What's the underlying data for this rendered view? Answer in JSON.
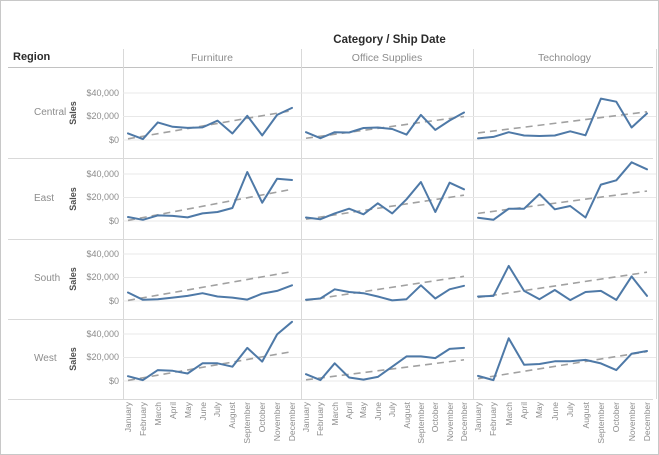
{
  "colors": {
    "line": "#4e79a7",
    "trend": "#a1a1a1",
    "grid": "#e8e8e8",
    "separator": "#d9d9d9",
    "header_rule": "#c2c2c2",
    "text_dark": "#2b2b2b",
    "text_gray": "#8c8c8c"
  },
  "chart_data": {
    "type": "line",
    "title": "Category / Ship Date",
    "row_dimension": "Region",
    "columns": [
      "Furniture",
      "Office Supplies",
      "Technology"
    ],
    "rows": [
      "Central",
      "East",
      "South",
      "West"
    ],
    "x": [
      "January",
      "February",
      "March",
      "April",
      "May",
      "June",
      "July",
      "August",
      "September",
      "October",
      "November",
      "December"
    ],
    "ylabel": "Sales",
    "y_ticks": [
      0,
      20000,
      40000
    ],
    "y_tick_labels": [
      "$0",
      "$20,000",
      "$40,000"
    ],
    "ylim": [
      -15000,
      53000
    ],
    "grid": "horizontal",
    "legend": "none",
    "trend_line_style": "dashed-gray",
    "panels": [
      {
        "region": "Central",
        "category": "Furniture",
        "values": [
          5600,
          800,
          15000,
          11200,
          10300,
          10700,
          16500,
          5500,
          20600,
          3900,
          21400,
          27300
        ],
        "trend": [
          1000,
          25000
        ]
      },
      {
        "region": "Central",
        "category": "Office Supplies",
        "values": [
          6600,
          1500,
          6600,
          6400,
          10200,
          10600,
          9400,
          4600,
          21400,
          8600,
          16600,
          23400
        ],
        "trend": [
          1500,
          20000
        ]
      },
      {
        "region": "Central",
        "category": "Technology",
        "values": [
          1400,
          2600,
          6600,
          3800,
          3400,
          3800,
          7400,
          4000,
          35200,
          32600,
          10600,
          22600
        ],
        "trend": [
          6000,
          24000
        ]
      },
      {
        "region": "East",
        "category": "Furniture",
        "values": [
          3400,
          1000,
          4800,
          4300,
          3100,
          6500,
          7700,
          11100,
          41700,
          15600,
          36000,
          34900
        ],
        "trend": [
          500,
          27000
        ]
      },
      {
        "region": "East",
        "category": "Office Supplies",
        "values": [
          3000,
          1500,
          6500,
          10500,
          5700,
          15100,
          6500,
          18500,
          33200,
          7700,
          32600,
          27000
        ],
        "trend": [
          1500,
          22000
        ]
      },
      {
        "region": "East",
        "category": "Technology",
        "values": [
          2800,
          1000,
          10500,
          10500,
          23000,
          10000,
          12800,
          3000,
          31000,
          34600,
          50000,
          44000
        ],
        "trend": [
          6500,
          25500
        ]
      },
      {
        "region": "South",
        "category": "Furniture",
        "values": [
          7200,
          1000,
          1500,
          2900,
          4300,
          6600,
          3800,
          2900,
          1200,
          6300,
          8600,
          13400
        ],
        "trend": [
          500,
          25000
        ]
      },
      {
        "region": "South",
        "category": "Office Supplies",
        "values": [
          1000,
          2100,
          10000,
          7700,
          6600,
          3800,
          500,
          1500,
          13400,
          2100,
          10000,
          12900
        ],
        "trend": [
          500,
          21000
        ]
      },
      {
        "region": "South",
        "category": "Technology",
        "values": [
          3800,
          4300,
          29900,
          8600,
          1500,
          9400,
          800,
          7700,
          8600,
          900,
          20900,
          4300
        ],
        "trend": [
          3000,
          24500
        ]
      },
      {
        "region": "West",
        "category": "Furniture",
        "values": [
          4100,
          800,
          9300,
          8700,
          6400,
          15100,
          15100,
          12200,
          28200,
          16500,
          39700,
          50400
        ],
        "trend": [
          500,
          25000
        ]
      },
      {
        "region": "West",
        "category": "Office Supplies",
        "values": [
          5800,
          800,
          15100,
          3000,
          1200,
          3500,
          12200,
          20900,
          20900,
          19500,
          27300,
          28200
        ],
        "trend": [
          1000,
          18000
        ]
      },
      {
        "region": "West",
        "category": "Technology",
        "values": [
          4300,
          800,
          36300,
          13900,
          14500,
          16800,
          16800,
          18000,
          15000,
          9300,
          23200,
          25500
        ],
        "trend": [
          2000,
          25000
        ]
      }
    ]
  }
}
